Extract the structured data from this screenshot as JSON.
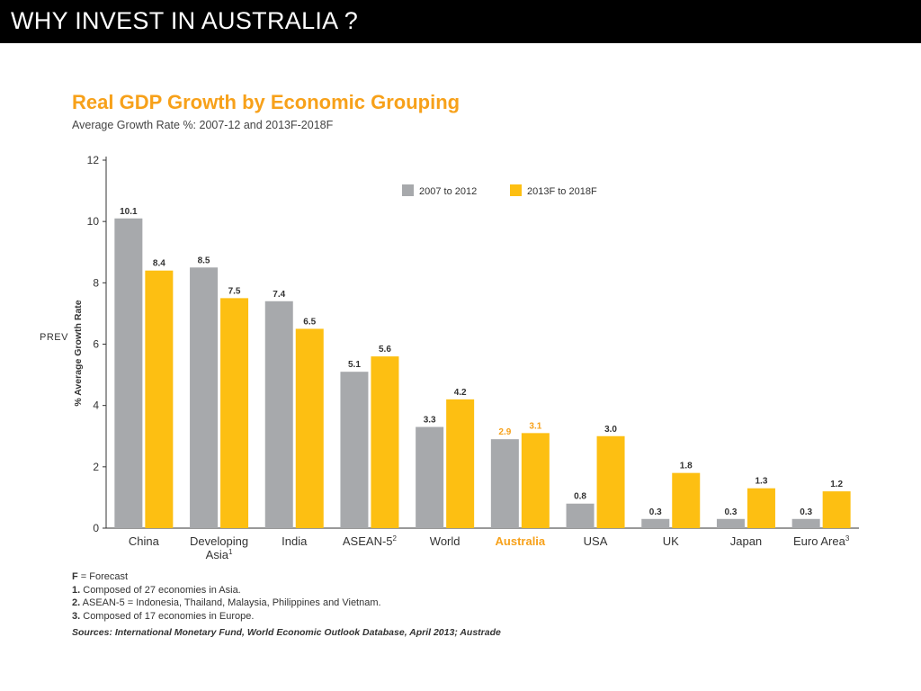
{
  "header": {
    "title": "WHY INVEST IN AUSTRALIA ?"
  },
  "side_label": "PREV",
  "chart_data": {
    "type": "bar",
    "title": "Real GDP Growth by Economic Grouping",
    "subtitle": "Average Growth Rate %: 2007-12 and 2013F-2018F",
    "ylabel": "% Average Growth Rate",
    "xlabel": "",
    "ylim": [
      0,
      12
    ],
    "yticks": [
      0,
      2,
      4,
      6,
      8,
      10,
      12
    ],
    "grid": false,
    "legend_position": "top-right",
    "categories": [
      "China",
      "Developing Asia",
      "India",
      "ASEAN-5",
      "World",
      "Australia",
      "USA",
      "UK",
      "Japan",
      "Euro Area"
    ],
    "category_lines": [
      [
        "China"
      ],
      [
        "Developing",
        "Asia"
      ],
      [
        "India"
      ],
      [
        "ASEAN-5"
      ],
      [
        "World"
      ],
      [
        "Australia"
      ],
      [
        "USA"
      ],
      [
        "UK"
      ],
      [
        "Japan"
      ],
      [
        "Euro Area"
      ]
    ],
    "category_superscripts": [
      "",
      "1",
      "",
      "2",
      "",
      "",
      "",
      "",
      "",
      "3"
    ],
    "highlight_category": "Australia",
    "series": [
      {
        "name": "2007 to 2012",
        "color": "#a7a9ac",
        "values": [
          10.1,
          8.5,
          7.4,
          5.1,
          3.3,
          2.9,
          0.8,
          0.3,
          0.3,
          0.3
        ],
        "labels": [
          "10.1",
          "8.5",
          "7.4",
          "5.1",
          "3.3",
          "2.9",
          "0.8",
          "0.3",
          "0.3",
          "0.3"
        ]
      },
      {
        "name": "2013F to 2018F",
        "color": "#fdbf12",
        "values": [
          8.4,
          7.5,
          6.5,
          5.6,
          4.2,
          3.1,
          3.0,
          1.8,
          1.3,
          1.2
        ],
        "labels": [
          "8.4",
          "7.5",
          "6.5",
          "5.6",
          "4.2",
          "3.1",
          "3.0",
          "1.8",
          "1.3",
          "1.2"
        ]
      }
    ],
    "colors": {
      "highlight_text": "#f7a11a",
      "title": "#f7a11a"
    }
  },
  "footnotes": {
    "f_key": "F",
    "f_text": "= Forecast",
    "items": [
      {
        "key": "1.",
        "text": "Composed of 27 economies in Asia."
      },
      {
        "key": "2.",
        "text": "ASEAN-5 = Indonesia, Thailand, Malaysia, Philippines and Vietnam."
      },
      {
        "key": "3.",
        "text": "Composed of 17 economies in Europe."
      }
    ]
  },
  "sources": "Sources: International Monetary Fund, World Economic Outlook Database, April 2013; Austrade"
}
